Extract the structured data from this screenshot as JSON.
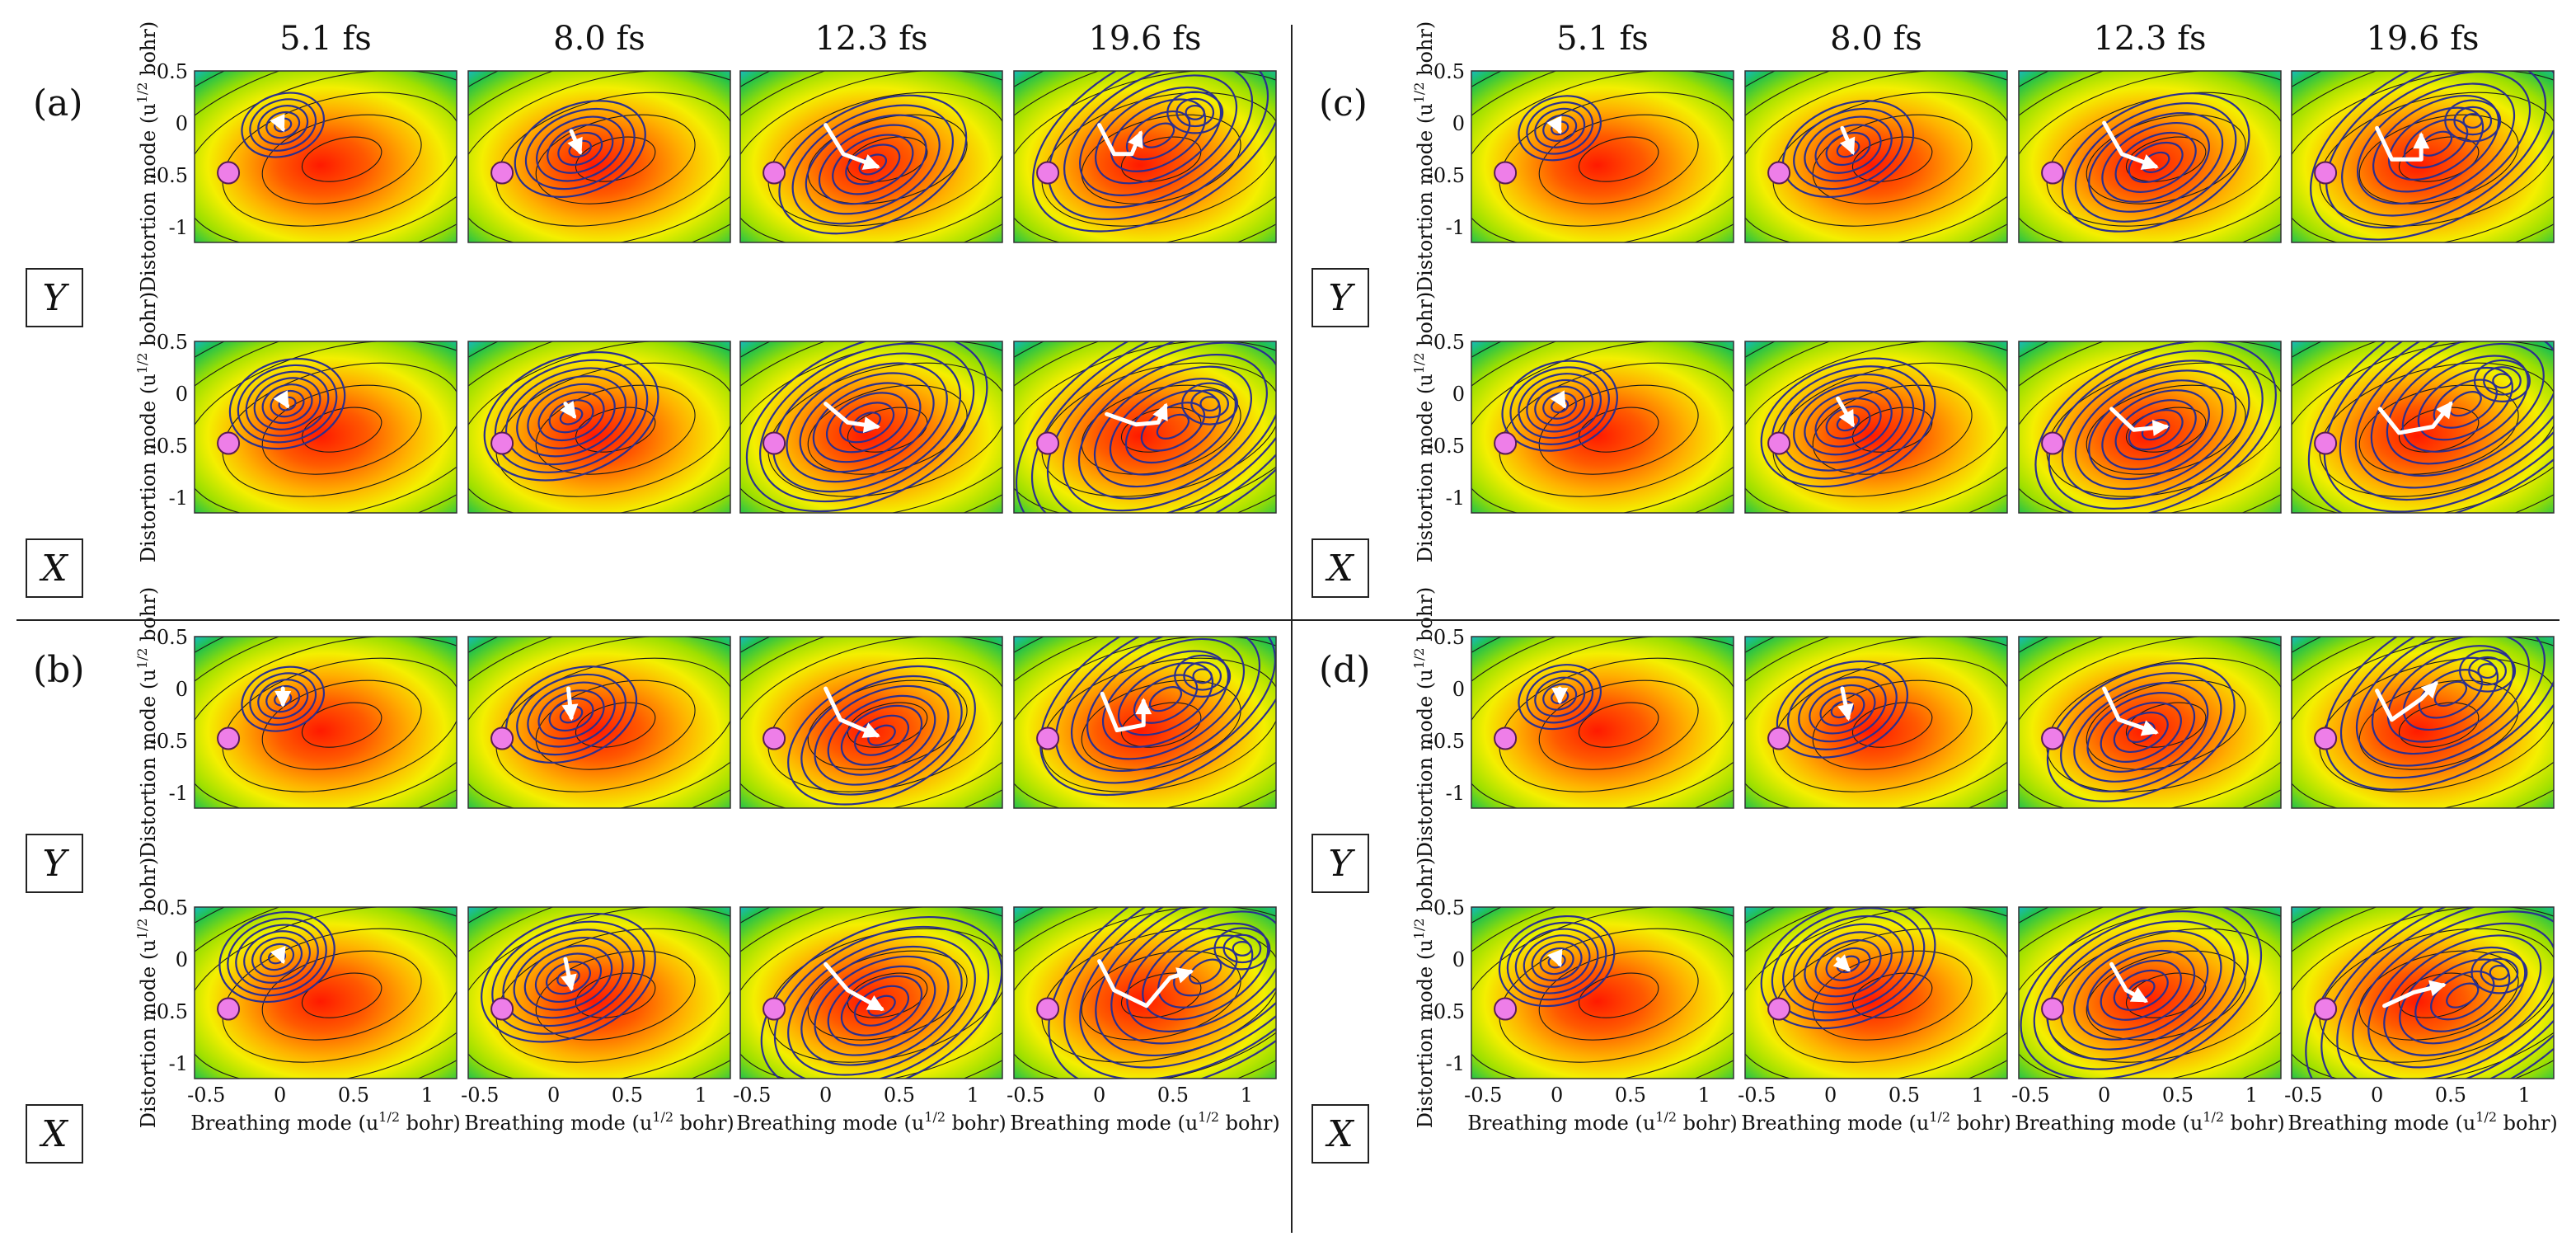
{
  "figure": {
    "times": [
      "5.1 fs",
      "8.0 fs",
      "12.3 fs",
      "19.6 fs"
    ],
    "panels": [
      "(a)",
      "(b)",
      "(c)",
      "(d)"
    ],
    "rows": [
      "Y",
      "X"
    ],
    "y_axis_label": "Distortion mode (u",
    "y_axis_sup": "1/2",
    "y_axis_unit": " bohr)",
    "x_axis_label": "Breathing mode (u",
    "x_axis_sup": "1/2",
    "x_axis_unit": " bohr)",
    "y_ticks": [
      "0.5",
      "0",
      "-0.5",
      "-1"
    ],
    "x_ticks": [
      "-0.5",
      "0",
      "0.5",
      "1"
    ]
  },
  "colors": {
    "contour_wavepacket": "#2b2f8f",
    "path_arrow": "#ffffff",
    "marker": "#ee7ee8",
    "surface_center": "#ff1a00",
    "surface_edge": "#16b8e8"
  }
}
